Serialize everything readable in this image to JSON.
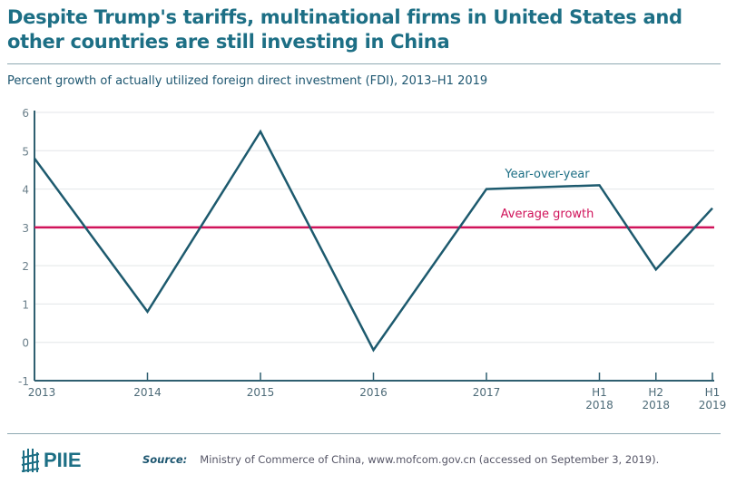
{
  "title": "Despite Trump's tariffs, multinational firms in United States and other countries are still investing in China",
  "chart_data": {
    "type": "line",
    "subtitle": "Percent growth of actually utilized foreign direct investment (FDI), 2013–H1 2019",
    "categories": [
      [
        "2013"
      ],
      [
        "2014"
      ],
      [
        "2015"
      ],
      [
        "2016"
      ],
      [
        "2017"
      ],
      [
        "H1",
        "2018"
      ],
      [
        "H2",
        "2018"
      ],
      [
        "H1",
        "2019"
      ]
    ],
    "x_positions_years": [
      2013,
      2014,
      2015,
      2016,
      2017,
      2018,
      2018.5,
      2019
    ],
    "series": [
      {
        "name": "Year-over-year",
        "values": [
          4.8,
          0.8,
          5.5,
          -0.2,
          4.0,
          4.1,
          1.9,
          3.5
        ],
        "color": "#1d5a6e"
      },
      {
        "name": "Average growth",
        "values": [
          3.0,
          3.0,
          3.0,
          3.0,
          3.0,
          3.0,
          3.0,
          3.0
        ],
        "color": "#d0135a"
      }
    ],
    "yticks": [
      "-1",
      "0",
      "1",
      "2",
      "3",
      "4",
      "5",
      "6"
    ],
    "ylim": [
      -1,
      6
    ],
    "grid": true
  },
  "footer": {
    "source_label": "Source:",
    "source_text": "Ministry of Commerce of China, www.mofcom.gov.cn (accessed on September 3, 2019).",
    "logo": "PIIE"
  }
}
